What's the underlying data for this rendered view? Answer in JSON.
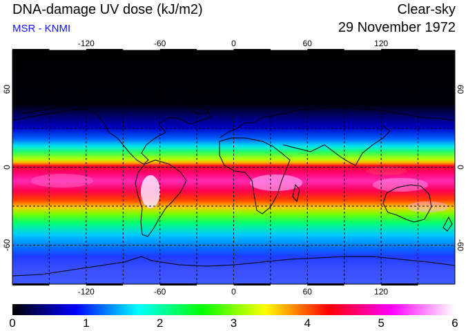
{
  "header": {
    "title": "DNA-damage UV dose (kJ/m2)",
    "subtitle": "MSR - KNMI",
    "condition": "Clear-sky",
    "date": "29 November 1972"
  },
  "map": {
    "projection": "equirectangular",
    "lon_range": [
      -180,
      180
    ],
    "lat_range": [
      -90,
      90
    ],
    "lon_ticks": [
      "-120",
      "-60",
      "0",
      "60",
      "120"
    ],
    "lat_ticks_left": [
      "60",
      "0",
      "-60"
    ],
    "lat_ticks_right": [
      "60",
      "0",
      "-60"
    ],
    "grid_lines": "dashed, every 30 degrees",
    "coastlines": "black outline"
  },
  "colorbar": {
    "min": 0,
    "max": 6,
    "labels": [
      "0",
      "1",
      "2",
      "3",
      "4",
      "5",
      "6"
    ],
    "colors": [
      "#000000",
      "#0000ff",
      "#00ffff",
      "#00ff00",
      "#ffff00",
      "#ff0000",
      "#ff00ff",
      "#ffffff"
    ]
  }
}
